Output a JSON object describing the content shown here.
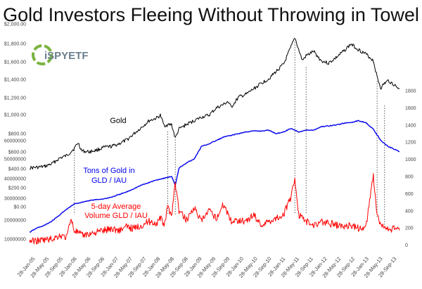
{
  "chart_data": {
    "type": "line",
    "title": "Gold Investors Fleeing Without Throwing in Towel",
    "x_labels": [
      "28-Jan-05",
      "28-May-05",
      "28-Sep-05",
      "28-Jan-06",
      "28-May-06",
      "28-Sep-06",
      "28-Jan-07",
      "28-May-07",
      "28-Sep-07",
      "28-Jan-08",
      "28-May-08",
      "28-Sep-08",
      "28-Jan-09",
      "28-May-09",
      "28-Sep-09",
      "28-Jan-10",
      "28-May-10",
      "28-Sep-10",
      "28-Jan-11",
      "28-May-11",
      "28-Sep-11",
      "28-Jan-12",
      "28-May-12",
      "28-Sep-12",
      "28-Jan-13",
      "28-May-13",
      "28-Sep-13"
    ],
    "axes": {
      "gold_price": {
        "position": "left",
        "ticks": [
          "$2,000.00",
          "$1,800.00",
          "$1,600.00",
          "$1,400.00",
          "$1,200.00",
          "$1,000.00",
          "$800.00",
          "$600.00",
          "$400.00",
          "$200.00",
          "$0.00"
        ],
        "ylim": [
          0,
          2000
        ]
      },
      "volume": {
        "position": "left",
        "ticks": [
          "60000000",
          "50000000",
          "40000000",
          "30000000",
          "20000000",
          "10000000"
        ]
      },
      "tons": {
        "position": "right",
        "ticks": [
          "1800",
          "1600",
          "1400",
          "1200",
          "1000",
          "800",
          "600",
          "400",
          "200",
          "0"
        ],
        "ylim": [
          0,
          1800
        ]
      }
    },
    "series": [
      {
        "name": "Gold",
        "color": "#000000",
        "axis": "gold_price",
        "points": [
          [
            0,
            425
          ],
          [
            2,
            430
          ],
          [
            4,
            440
          ],
          [
            6,
            470
          ],
          [
            8,
            530
          ],
          [
            10,
            560
          ],
          [
            12,
            640
          ],
          [
            13,
            700
          ],
          [
            14,
            610
          ],
          [
            16,
            600
          ],
          [
            18,
            620
          ],
          [
            20,
            650
          ],
          [
            22,
            660
          ],
          [
            24,
            690
          ],
          [
            26,
            730
          ],
          [
            28,
            800
          ],
          [
            30,
            870
          ],
          [
            32,
            940
          ],
          [
            34,
            970
          ],
          [
            35,
            1000
          ],
          [
            36,
            890
          ],
          [
            38,
            900
          ],
          [
            39,
            750
          ],
          [
            40,
            850
          ],
          [
            42,
            900
          ],
          [
            44,
            940
          ],
          [
            46,
            980
          ],
          [
            48,
            1000
          ],
          [
            50,
            1080
          ],
          [
            52,
            1120
          ],
          [
            53,
            1150
          ],
          [
            54,
            1090
          ],
          [
            56,
            1200
          ],
          [
            58,
            1230
          ],
          [
            60,
            1290
          ],
          [
            62,
            1350
          ],
          [
            64,
            1400
          ],
          [
            66,
            1480
          ],
          [
            68,
            1560
          ],
          [
            70,
            1750
          ],
          [
            71,
            1850
          ],
          [
            72,
            1720
          ],
          [
            73,
            1600
          ],
          [
            74,
            1650
          ],
          [
            76,
            1700
          ],
          [
            78,
            1600
          ],
          [
            80,
            1570
          ],
          [
            82,
            1630
          ],
          [
            84,
            1700
          ],
          [
            86,
            1780
          ],
          [
            88,
            1720
          ],
          [
            90,
            1670
          ],
          [
            92,
            1600
          ],
          [
            93,
            1420
          ],
          [
            94,
            1300
          ],
          [
            95,
            1350
          ],
          [
            96,
            1380
          ],
          [
            98,
            1320
          ],
          [
            99,
            1290
          ]
        ]
      },
      {
        "name": "Tons of Gold in GLD / IAU",
        "color": "#0000ee",
        "axis": "tons",
        "points": [
          [
            0,
            150
          ],
          [
            2,
            200
          ],
          [
            4,
            230
          ],
          [
            6,
            280
          ],
          [
            8,
            350
          ],
          [
            10,
            420
          ],
          [
            12,
            480
          ],
          [
            14,
            500
          ],
          [
            16,
            520
          ],
          [
            18,
            530
          ],
          [
            20,
            540
          ],
          [
            22,
            560
          ],
          [
            24,
            590
          ],
          [
            26,
            620
          ],
          [
            28,
            660
          ],
          [
            30,
            700
          ],
          [
            32,
            730
          ],
          [
            34,
            760
          ],
          [
            36,
            780
          ],
          [
            38,
            800
          ],
          [
            39,
            700
          ],
          [
            40,
            900
          ],
          [
            42,
            960
          ],
          [
            44,
            1000
          ],
          [
            46,
            1150
          ],
          [
            48,
            1180
          ],
          [
            50,
            1220
          ],
          [
            52,
            1260
          ],
          [
            54,
            1280
          ],
          [
            56,
            1300
          ],
          [
            58,
            1320
          ],
          [
            60,
            1330
          ],
          [
            62,
            1330
          ],
          [
            64,
            1340
          ],
          [
            66,
            1300
          ],
          [
            68,
            1320
          ],
          [
            70,
            1360
          ],
          [
            72,
            1320
          ],
          [
            74,
            1340
          ],
          [
            76,
            1340
          ],
          [
            78,
            1380
          ],
          [
            80,
            1390
          ],
          [
            82,
            1400
          ],
          [
            84,
            1420
          ],
          [
            86,
            1430
          ],
          [
            88,
            1450
          ],
          [
            90,
            1430
          ],
          [
            92,
            1350
          ],
          [
            94,
            1220
          ],
          [
            96,
            1150
          ],
          [
            98,
            1110
          ],
          [
            99,
            1090
          ]
        ]
      },
      {
        "name": "5-day Average Volume GLD / IAU",
        "color": "#ff0000",
        "axis": "volume",
        "points": [
          [
            0,
            3
          ],
          [
            2,
            3
          ],
          [
            4,
            3.5
          ],
          [
            6,
            4
          ],
          [
            8,
            6
          ],
          [
            10,
            5
          ],
          [
            11,
            16
          ],
          [
            12,
            9
          ],
          [
            14,
            6
          ],
          [
            16,
            7
          ],
          [
            18,
            8
          ],
          [
            20,
            9
          ],
          [
            22,
            10
          ],
          [
            24,
            9
          ],
          [
            26,
            11
          ],
          [
            28,
            10
          ],
          [
            30,
            12
          ],
          [
            32,
            14
          ],
          [
            34,
            13
          ],
          [
            35,
            16
          ],
          [
            36,
            12
          ],
          [
            37,
            22
          ],
          [
            38,
            18
          ],
          [
            39,
            36
          ],
          [
            40,
            20
          ],
          [
            42,
            15
          ],
          [
            44,
            22
          ],
          [
            46,
            14
          ],
          [
            48,
            20
          ],
          [
            50,
            16
          ],
          [
            52,
            24
          ],
          [
            54,
            14
          ],
          [
            56,
            15
          ],
          [
            58,
            14
          ],
          [
            60,
            18
          ],
          [
            62,
            12
          ],
          [
            64,
            14
          ],
          [
            66,
            16
          ],
          [
            68,
            18
          ],
          [
            70,
            28
          ],
          [
            71,
            39
          ],
          [
            72,
            18
          ],
          [
            74,
            14
          ],
          [
            76,
            12
          ],
          [
            78,
            14
          ],
          [
            80,
            13
          ],
          [
            82,
            12
          ],
          [
            84,
            11
          ],
          [
            86,
            12
          ],
          [
            88,
            10
          ],
          [
            90,
            11
          ],
          [
            92,
            40
          ],
          [
            93,
            18
          ],
          [
            94,
            12
          ],
          [
            96,
            9
          ],
          [
            98,
            10
          ],
          [
            99,
            9
          ]
        ]
      }
    ],
    "annotations": [
      {
        "text": "Gold",
        "color": "#000000"
      },
      {
        "text": "Tons of Gold in",
        "color": "#0000ee"
      },
      {
        "text": "GLD / IAU",
        "color": "#0000ee"
      },
      {
        "text": "5-day Average",
        "color": "#ff0000"
      },
      {
        "text": "Volume GLD / IAU",
        "color": "#ff0000"
      }
    ],
    "grid": false,
    "legend": "none"
  },
  "logo": {
    "text": "iSPYETF"
  }
}
